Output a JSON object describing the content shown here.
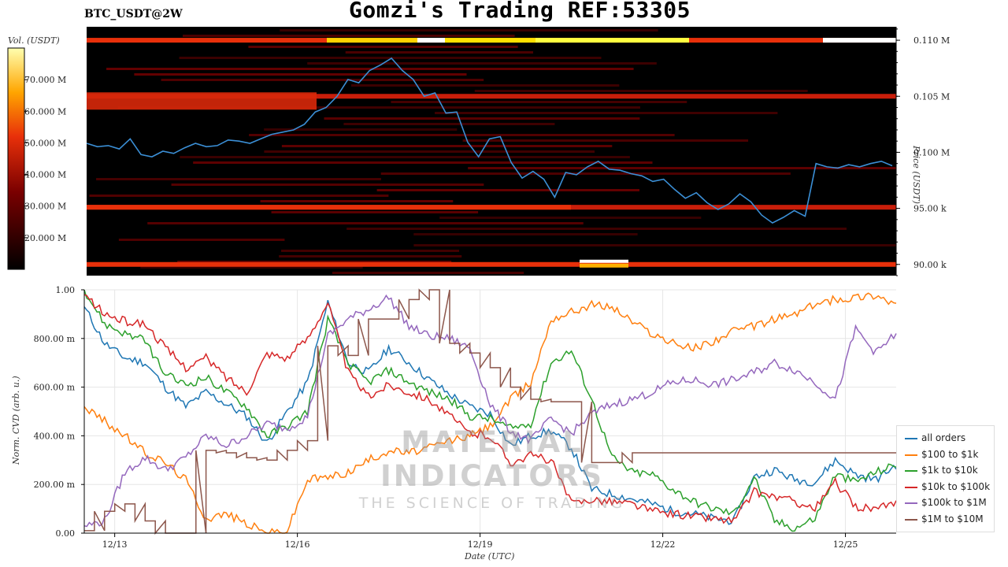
{
  "header": {
    "title": "Gomzi's Trading REF:53305",
    "symbol": "BTC_USDT@2W"
  },
  "colorbar": {
    "label": "Vol. (USDT)",
    "ticks": [
      "70.000 M",
      "60.000 M",
      "50.000 M",
      "40.000 M",
      "30.000 M",
      "20.000 M"
    ]
  },
  "watermark": {
    "title": "MATERIAL INDICATORS",
    "subtitle": "THE SCIENCE OF TRADING"
  },
  "legend": {
    "items": [
      {
        "label": "all orders",
        "color": "#1f77b4"
      },
      {
        "label": "$100 to $1k",
        "color": "#ff7f0e"
      },
      {
        "label": "$1k to $10k",
        "color": "#2ca02c"
      },
      {
        "label": "$10k to $100k",
        "color": "#d62728"
      },
      {
        "label": "$100k to $1M",
        "color": "#9467bd"
      },
      {
        "label": "$1M to $10M",
        "color": "#8c564b"
      }
    ]
  },
  "chart_data": [
    {
      "type": "heatmap",
      "title": "BTC_USDT@2W",
      "ylabel": "Price (USDT)",
      "ylim": [
        89000,
        111200
      ],
      "price_ticks": [
        {
          "label": "0.110 M",
          "value": 110000
        },
        {
          "label": "0.105 M",
          "value": 105000
        },
        {
          "label": "0.100 M",
          "value": 100000
        },
        {
          "label": "95.00 k",
          "value": 95000
        },
        {
          "label": "90.00 k",
          "value": 90000
        }
      ],
      "colorbar_range": [
        10000000,
        80000000
      ],
      "price_series": {
        "name": "price",
        "x_range": [
          0,
          14
        ],
        "values": [
          100800,
          100500,
          100600,
          100300,
          101200,
          99800,
          99600,
          100100,
          99900,
          100400,
          100800,
          100500,
          100600,
          101100,
          101000,
          100800,
          101200,
          101600,
          101800,
          102000,
          102500,
          103600,
          104000,
          105000,
          106500,
          106200,
          107300,
          107800,
          108400,
          107300,
          106500,
          105000,
          105300,
          103500,
          103600,
          100900,
          99600,
          101200,
          101400,
          99100,
          97700,
          98300,
          97600,
          96000,
          98200,
          98000,
          98700,
          99200,
          98500,
          98400,
          98100,
          97900,
          97400,
          97600,
          96700,
          95900,
          96400,
          95500,
          94900,
          95400,
          96300,
          95600,
          94400,
          93700,
          94200,
          94800,
          94300,
          99000,
          98700,
          98600,
          98900,
          98700,
          99000,
          99200,
          98800
        ]
      },
      "liquidity_bands": [
        {
          "price": 110000,
          "intensity": "very high"
        },
        {
          "price": 105000,
          "intensity": "high"
        },
        {
          "price": 95100,
          "intensity": "high"
        },
        {
          "price": 90000,
          "intensity": "very high"
        }
      ]
    },
    {
      "type": "line",
      "xlabel": "Date (UTC)",
      "ylabel": "Norm. CVD (arb. u.)",
      "ylim": [
        0,
        1
      ],
      "x_ticks": [
        "12/13",
        "12/16",
        "12/19",
        "12/22",
        "12/25"
      ],
      "y_ticks": [
        "0.00",
        "200.00 m",
        "400.00 m",
        "600.00 m",
        "800.00 m",
        "1.00"
      ],
      "x": [
        "12/12 12:00",
        "12/12 20:00",
        "12/13 04:00",
        "12/13 12:00",
        "12/13 20:00",
        "12/14 04:00",
        "12/14 12:00",
        "12/14 20:00",
        "12/15 04:00",
        "12/15 12:00",
        "12/15 20:00",
        "12/16 04:00",
        "12/16 12:00",
        "12/16 20:00",
        "12/17 04:00",
        "12/17 12:00",
        "12/17 20:00",
        "12/18 04:00",
        "12/18 12:00",
        "12/18 20:00",
        "12/19 04:00",
        "12/19 12:00",
        "12/19 20:00",
        "12/20 04:00",
        "12/20 12:00",
        "12/20 20:00",
        "12/21 04:00",
        "12/21 12:00",
        "12/21 20:00",
        "12/22 04:00",
        "12/22 12:00",
        "12/22 20:00",
        "12/23 04:00",
        "12/23 12:00",
        "12/23 20:00",
        "12/24 04:00",
        "12/24 12:00",
        "12/24 20:00",
        "12/25 04:00",
        "12/25 12:00",
        "12/25 20:00"
      ],
      "series": [
        {
          "name": "all orders",
          "values": [
            0.93,
            0.78,
            0.72,
            0.7,
            0.6,
            0.52,
            0.58,
            0.53,
            0.48,
            0.37,
            0.5,
            0.62,
            0.95,
            0.7,
            0.66,
            0.76,
            0.7,
            0.63,
            0.57,
            0.52,
            0.49,
            0.36,
            0.4,
            0.42,
            0.35,
            0.18,
            0.16,
            0.14,
            0.12,
            0.09,
            0.08,
            0.06,
            0.05,
            0.23,
            0.26,
            0.22,
            0.21,
            0.3,
            0.24,
            0.22,
            0.28
          ]
        },
        {
          "name": "$100 to $1k",
          "values": [
            0.52,
            0.46,
            0.4,
            0.33,
            0.29,
            0.22,
            0.06,
            0.08,
            0.04,
            0.0,
            0.01,
            0.22,
            0.23,
            0.25,
            0.3,
            0.34,
            0.33,
            0.35,
            0.38,
            0.4,
            0.44,
            0.55,
            0.62,
            0.88,
            0.91,
            0.94,
            0.93,
            0.87,
            0.82,
            0.78,
            0.76,
            0.79,
            0.83,
            0.85,
            0.88,
            0.9,
            0.94,
            0.96,
            0.97,
            0.98,
            0.94
          ]
        },
        {
          "name": "$1k to $10k",
          "values": [
            1.0,
            0.86,
            0.82,
            0.79,
            0.65,
            0.61,
            0.64,
            0.58,
            0.52,
            0.4,
            0.44,
            0.5,
            0.88,
            0.7,
            0.62,
            0.67,
            0.62,
            0.58,
            0.55,
            0.48,
            0.47,
            0.43,
            0.45,
            0.7,
            0.75,
            0.55,
            0.31,
            0.25,
            0.24,
            0.18,
            0.13,
            0.1,
            0.08,
            0.23,
            0.05,
            0.02,
            0.06,
            0.24,
            0.21,
            0.25,
            0.28
          ]
        },
        {
          "name": "$10k to $100k",
          "values": [
            0.98,
            0.9,
            0.87,
            0.86,
            0.76,
            0.68,
            0.72,
            0.64,
            0.58,
            0.74,
            0.72,
            0.8,
            0.95,
            0.66,
            0.56,
            0.61,
            0.58,
            0.55,
            0.48,
            0.41,
            0.4,
            0.29,
            0.32,
            0.3,
            0.12,
            0.14,
            0.13,
            0.12,
            0.09,
            0.08,
            0.07,
            0.06,
            0.05,
            0.17,
            0.15,
            0.13,
            0.1,
            0.21,
            0.11,
            0.1,
            0.12
          ]
        },
        {
          "name": "$100k to $1M",
          "values": [
            0.03,
            0.05,
            0.25,
            0.31,
            0.26,
            0.31,
            0.4,
            0.36,
            0.4,
            0.45,
            0.43,
            0.48,
            0.81,
            0.88,
            0.92,
            0.97,
            0.85,
            0.81,
            0.8,
            0.76,
            0.53,
            0.42,
            0.38,
            0.47,
            0.41,
            0.49,
            0.53,
            0.55,
            0.58,
            0.62,
            0.63,
            0.61,
            0.63,
            0.66,
            0.7,
            0.67,
            0.62,
            0.55,
            0.84,
            0.74,
            0.82
          ]
        },
        {
          "name": "$1M to $10M",
          "values": [
            0.01,
            0.09,
            0.12,
            0.05,
            0.0,
            0.0,
            0.34,
            0.33,
            0.31,
            0.3,
            0.34,
            0.38,
            0.77,
            0.73,
            0.88,
            0.88,
            0.96,
            1.0,
            0.78,
            0.74,
            0.68,
            0.6,
            0.55,
            0.54,
            0.54,
            0.29,
            0.29,
            0.33,
            0.33,
            0.33,
            0.33,
            0.33,
            0.33,
            0.33,
            0.33,
            0.33,
            0.33,
            0.33,
            0.33,
            0.33,
            0.33
          ]
        }
      ]
    }
  ]
}
